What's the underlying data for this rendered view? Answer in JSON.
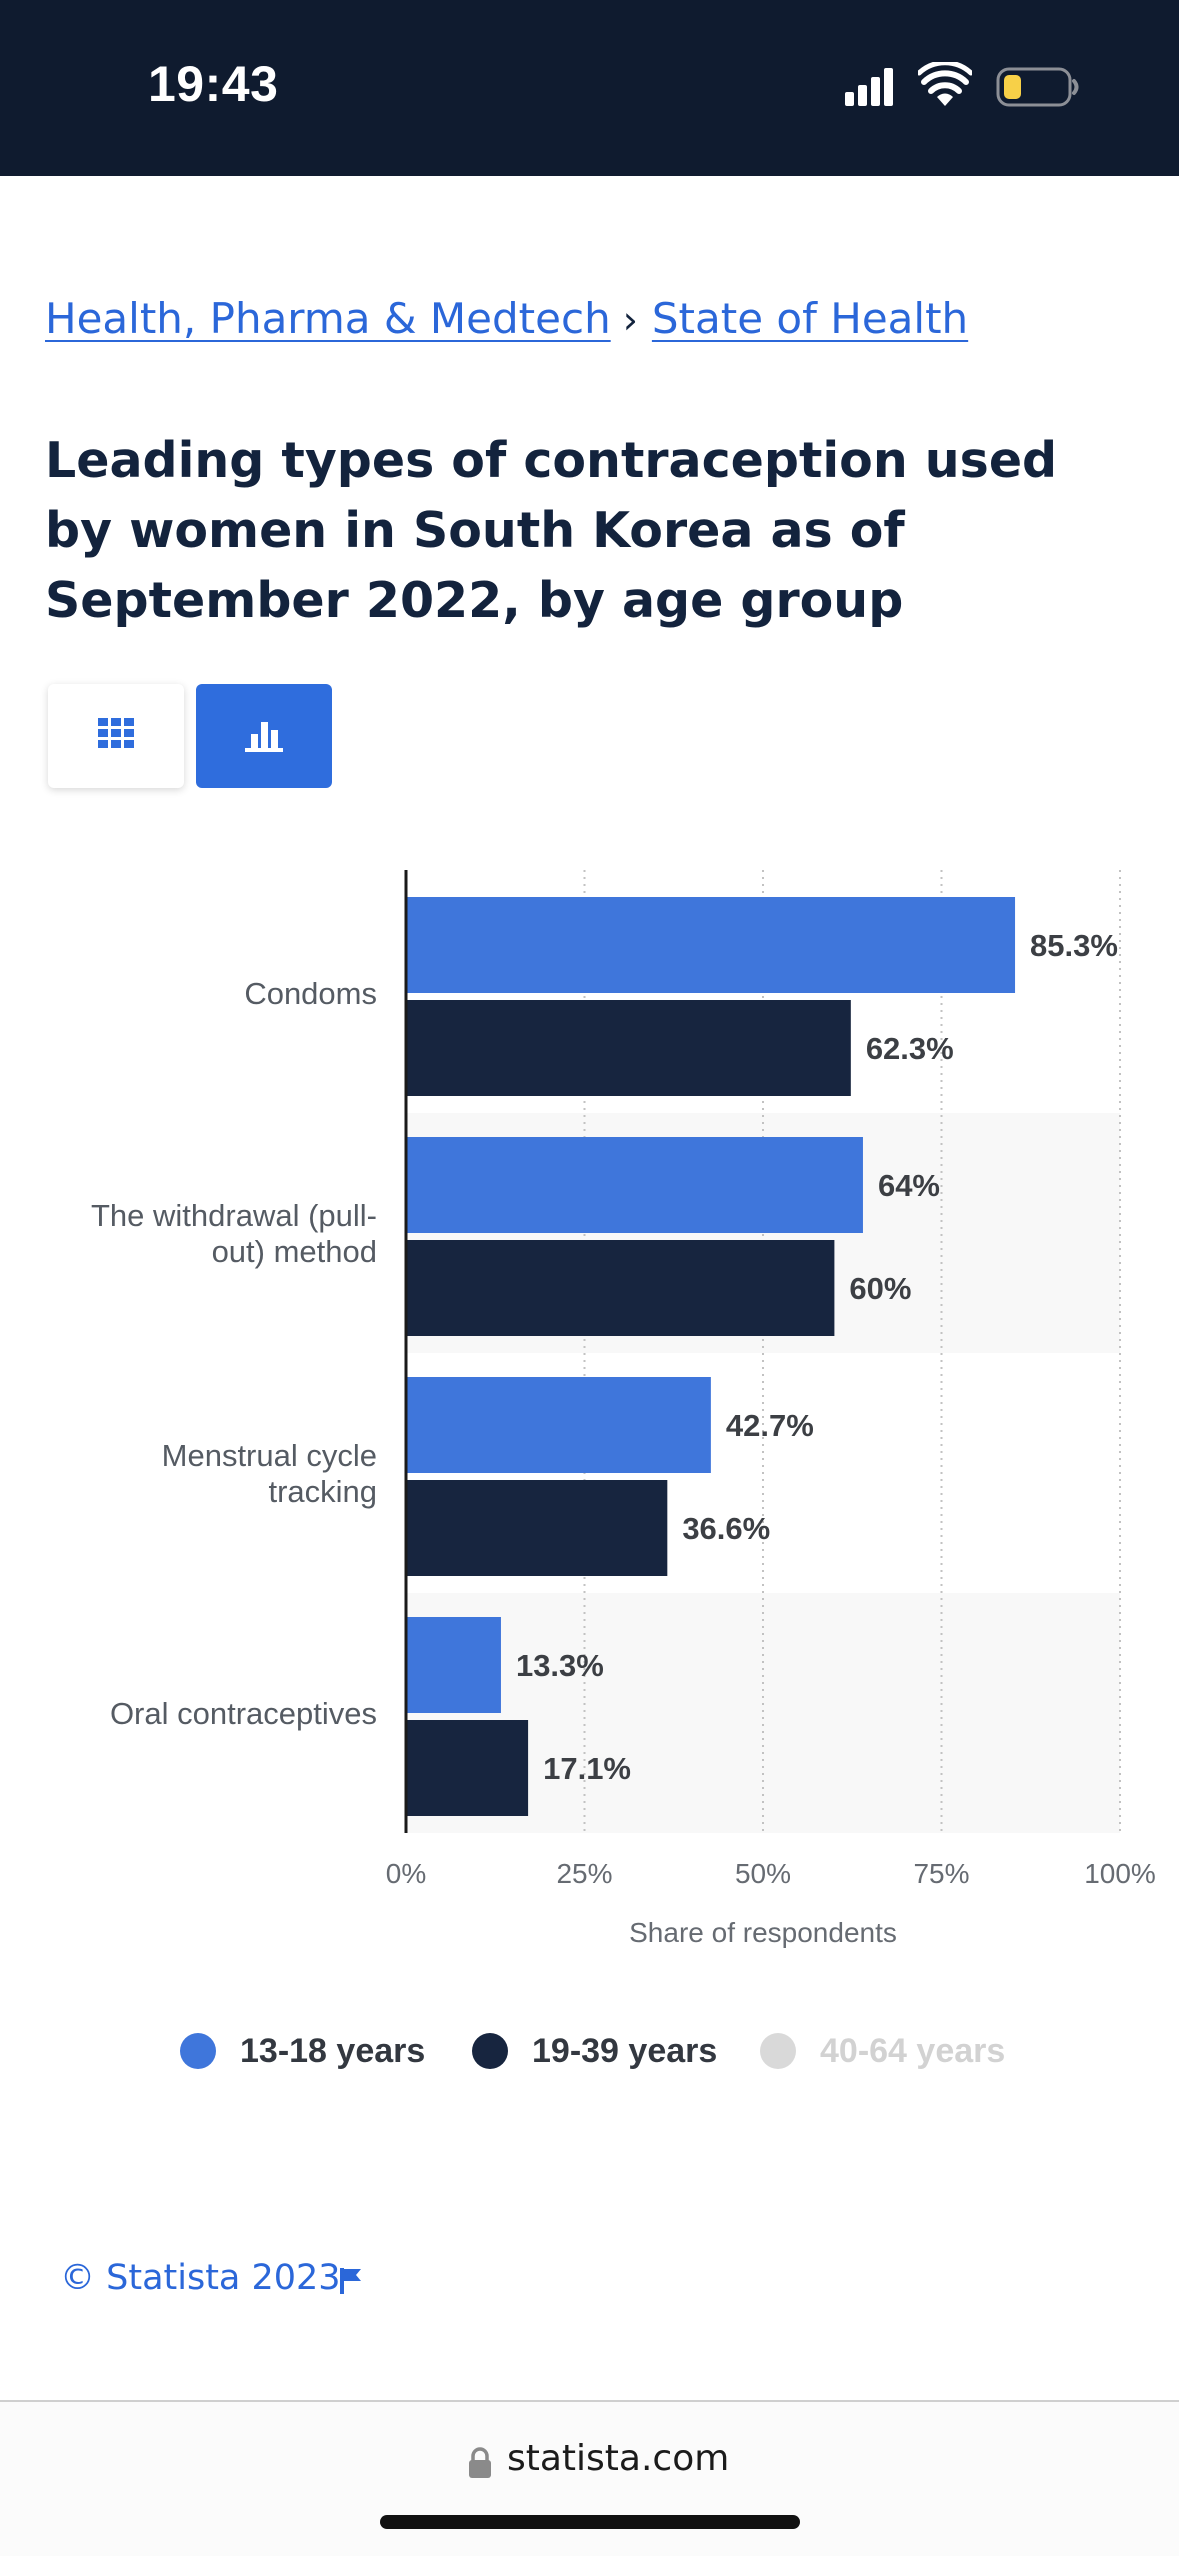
{
  "status_bar": {
    "time": "19:43"
  },
  "breadcrumb": {
    "items": [
      "Health, Pharma & Medtech",
      "State of Health"
    ],
    "separator": "›"
  },
  "title": "Leading types of contraception used by women in South Korea as of September 2022, by age group",
  "view_toggle": {
    "active": "chart",
    "icons": [
      "table-grid-icon",
      "bar-chart-icon"
    ]
  },
  "colors": {
    "accent": "#3f76db",
    "dark": "#17253f",
    "inactive": "#d9d9d9",
    "link": "#2b67d9"
  },
  "chart_data": {
    "type": "bar",
    "orientation": "horizontal",
    "categories": [
      [
        "Condoms"
      ],
      [
        "The withdrawal (pull-",
        "out) method"
      ],
      [
        "Menstrual cycle",
        "tracking"
      ],
      [
        "Oral contraceptives"
      ]
    ],
    "series": [
      {
        "name": "13-18 years",
        "values": [
          85.3,
          64,
          42.7,
          13.3
        ],
        "labels": [
          "85.3%",
          "64%",
          "42.7%",
          "13.3%"
        ],
        "color": "#3f76db"
      },
      {
        "name": "19-39 years",
        "values": [
          62.3,
          60,
          36.6,
          17.1
        ],
        "labels": [
          "62.3%",
          "60%",
          "36.6%",
          "17.1%"
        ],
        "color": "#17253f"
      }
    ],
    "xlim": [
      0,
      100
    ],
    "ticks": [
      0,
      25,
      50,
      75,
      100
    ],
    "tick_labels": [
      "0%",
      "25%",
      "50%",
      "75%",
      "100%"
    ],
    "xlabel": "Share of respondents",
    "grid": "vertical-dotted",
    "legend": {
      "position": "bottom",
      "items": [
        {
          "name": "13-18 years",
          "color": "#3f76db",
          "active": true
        },
        {
          "name": "19-39 years",
          "color": "#17253f",
          "active": true
        },
        {
          "name": "40-64 years",
          "color": "#d9d9d9",
          "active": false
        }
      ]
    }
  },
  "footer": {
    "copyright": "© Statista 2023",
    "url": "statista.com"
  }
}
